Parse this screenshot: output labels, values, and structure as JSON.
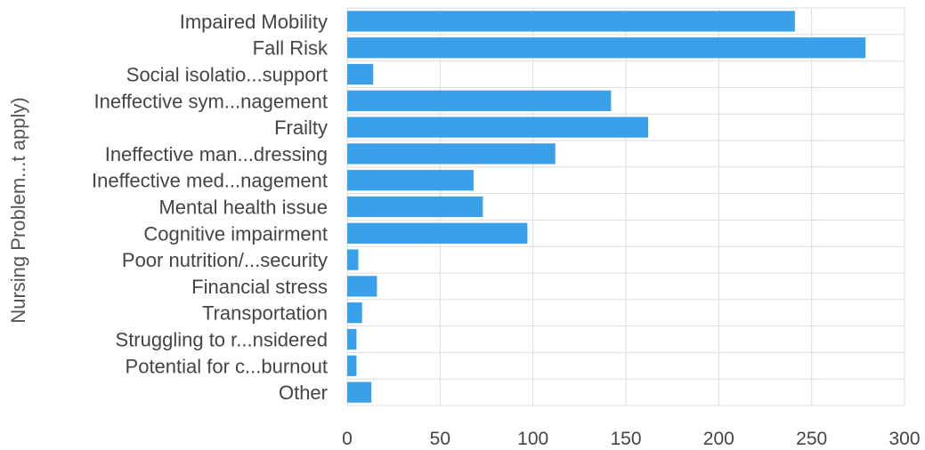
{
  "chart_data": {
    "type": "bar",
    "orientation": "horizontal",
    "ylabel": "Nursing Problem...t apply)",
    "xlabel": "",
    "categories": [
      "Impaired Mobility",
      "Fall Risk",
      "Social isolatio...support",
      "Ineffective sym...nagement",
      "Frailty",
      "Ineffective man...dressing",
      "Ineffective med...nagement",
      "Mental health issue",
      "Cognitive impairment",
      "Poor nutrition/...security",
      "Financial stress",
      "Transportation",
      "Struggling to r...nsidered",
      "Potential for c...burnout",
      "Other"
    ],
    "values": [
      241,
      279,
      14,
      142,
      162,
      112,
      68,
      73,
      97,
      6,
      16,
      8,
      5,
      5,
      13
    ],
    "xlim": [
      0,
      300
    ],
    "xticks": [
      "0",
      "50",
      "100",
      "150",
      "200",
      "250",
      "300"
    ],
    "bar_color": "#3aa0ea",
    "grid": true
  }
}
